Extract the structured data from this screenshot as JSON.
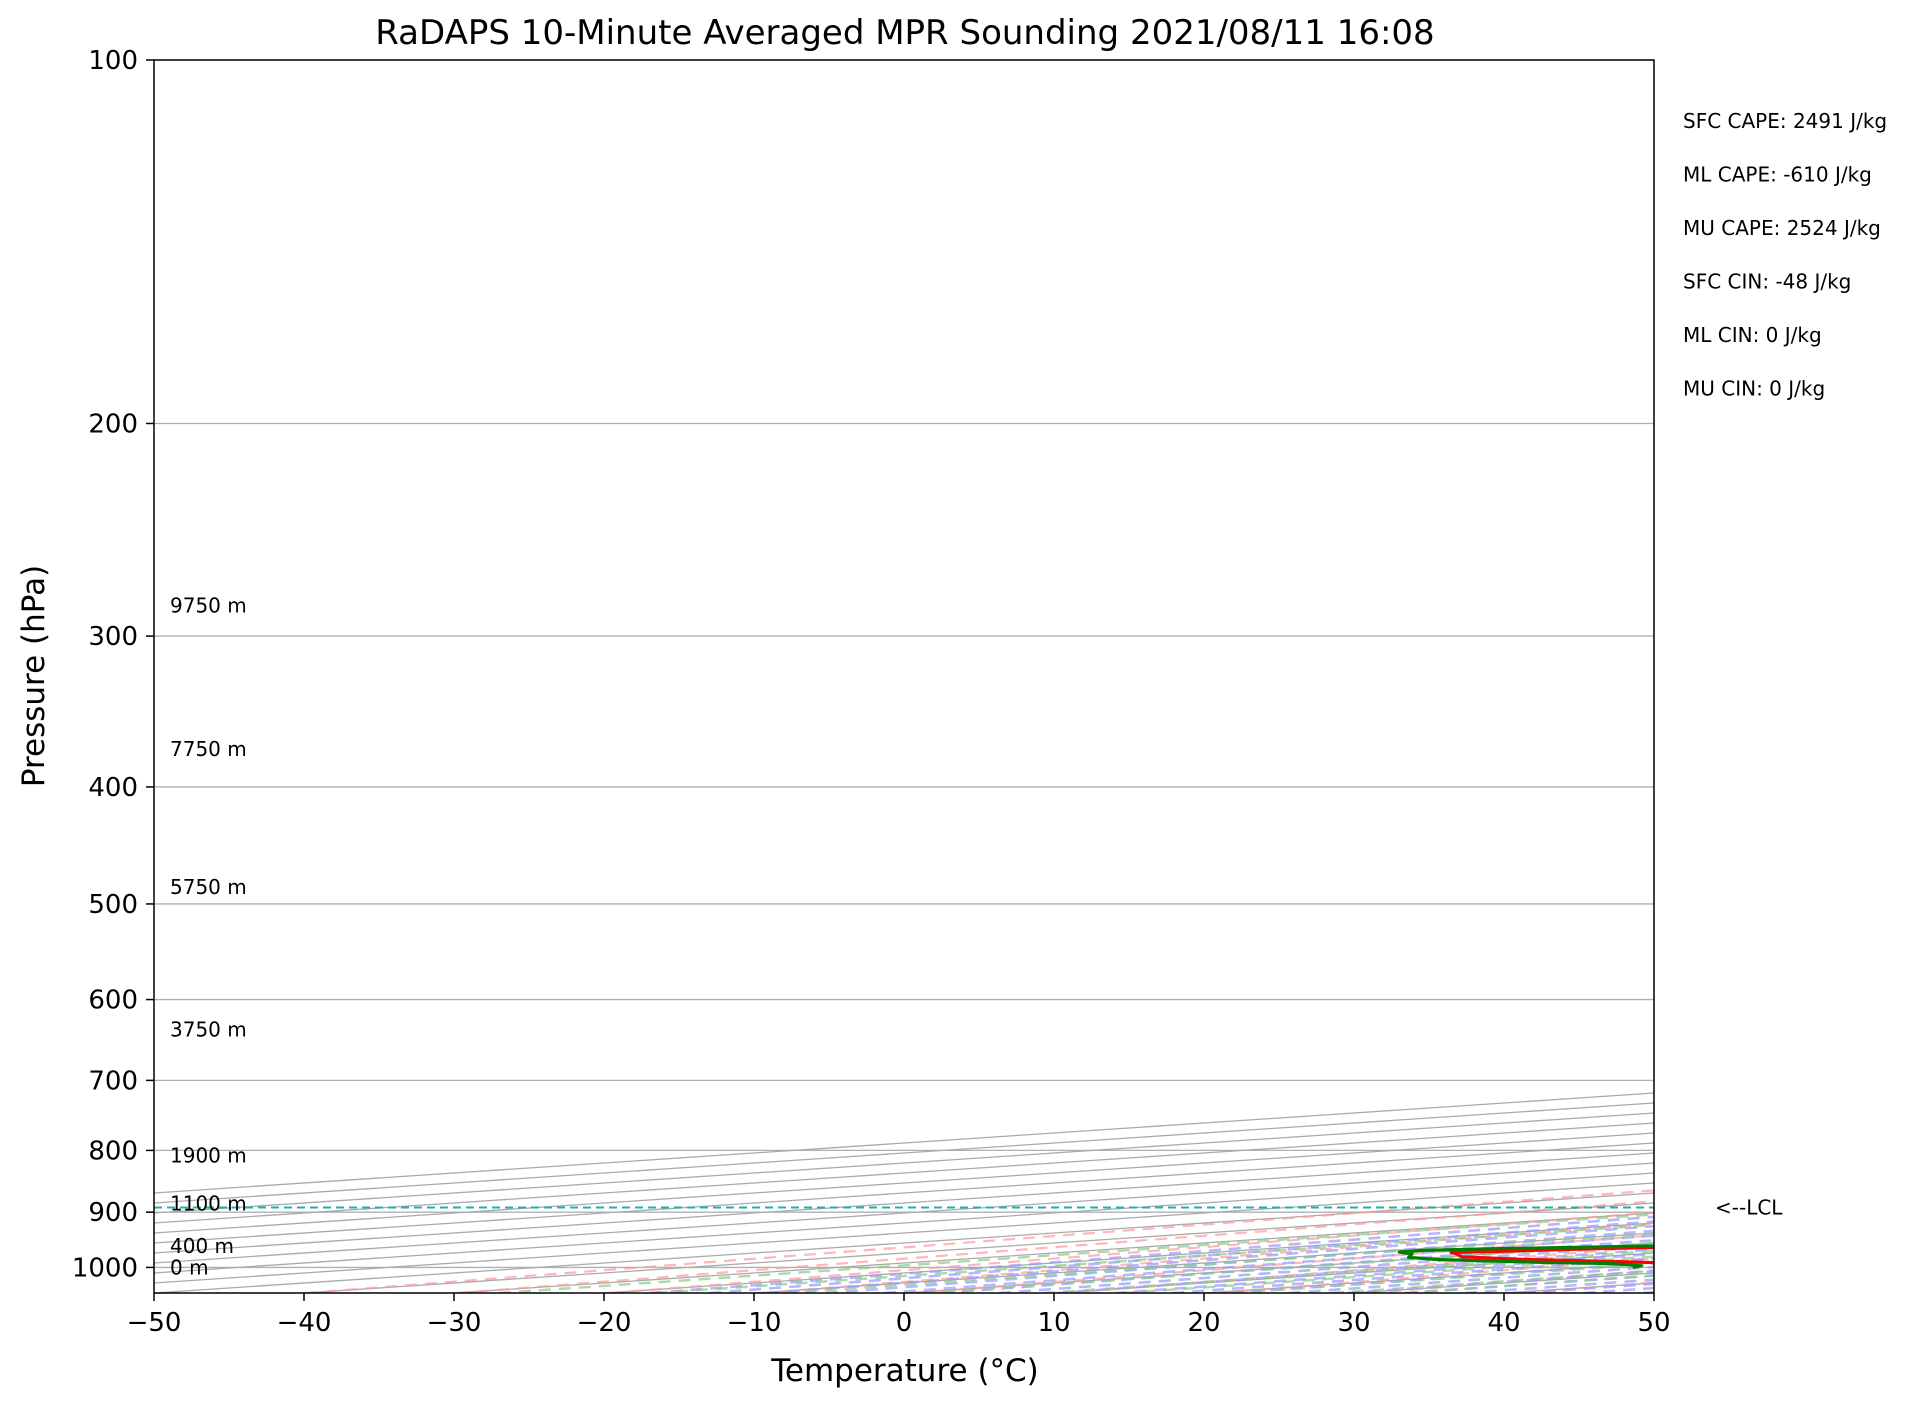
{
  "chart_data": {
    "type": "line",
    "title": "RaDAPS 10-Minute Averaged MPR Sounding 2021/08/11 16:08",
    "xlabel": "Temperature (°C)",
    "ylabel": "Pressure (hPa)",
    "xlim": [
      -50,
      50
    ],
    "ylim": [
      1050,
      100
    ],
    "yscale": "log",
    "skew_ratio": 1.0,
    "xticks": [
      -50,
      -40,
      -30,
      -20,
      -10,
      0,
      10,
      20,
      30,
      40,
      50
    ],
    "xtick_labels": [
      "−50",
      "−40",
      "−30",
      "−20",
      "−10",
      "0",
      "10",
      "20",
      "30",
      "40",
      "50"
    ],
    "yticks": [
      100,
      200,
      300,
      400,
      500,
      600,
      700,
      800,
      900,
      1000
    ],
    "ytick_labels": [
      "100",
      "200",
      "300",
      "400",
      "500",
      "600",
      "700",
      "800",
      "900",
      "1000"
    ],
    "grid": true,
    "series": [
      {
        "color": "#ff0000",
        "points": [
          [
            1000,
            33
          ],
          [
            997,
            32
          ],
          [
            995,
            28
          ],
          [
            994,
            25
          ],
          [
            990,
            18
          ],
          [
            985,
            8
          ],
          [
            980,
            1
          ],
          [
            975,
            -2
          ],
          [
            972,
            -4
          ],
          [
            965,
            2
          ],
          [
            960,
            8
          ],
          [
            952,
            14
          ],
          [
            945,
            20
          ],
          [
            940,
            21
          ],
          [
            935,
            24
          ],
          [
            930,
            26
          ],
          [
            927,
            29
          ],
          [
            923,
            33
          ],
          [
            920,
            33
          ],
          [
            917,
            30
          ],
          [
            912,
            26
          ],
          [
            906,
            36
          ],
          [
            900,
            50
          ],
          [
            896,
            30
          ],
          [
            890,
            38
          ],
          [
            888,
            35
          ],
          [
            885,
            36
          ],
          [
            878,
            40
          ],
          [
            872,
            40
          ],
          [
            865,
            38
          ],
          [
            860,
            37
          ],
          [
            858,
            36
          ],
          [
            855,
            27
          ],
          [
            850,
            24
          ],
          [
            845,
            28
          ],
          [
            838,
            36
          ],
          [
            832,
            24
          ],
          [
            820,
            20
          ],
          [
            800,
            17
          ],
          [
            790,
            15
          ],
          [
            770,
            13
          ],
          [
            750,
            12
          ],
          [
            730,
            12
          ],
          [
            700,
            13
          ],
          [
            680,
            12
          ],
          [
            650,
            10
          ],
          [
            600,
            8
          ],
          [
            560,
            7
          ],
          [
            530,
            4
          ],
          [
            500,
            0
          ],
          [
            460,
            -5
          ],
          [
            440,
            -7
          ],
          [
            420,
            -7
          ],
          [
            400,
            -10
          ],
          [
            380,
            -12
          ],
          [
            360,
            -14
          ],
          [
            340,
            -17
          ],
          [
            320,
            -19
          ],
          [
            303,
            -20
          ],
          [
            296,
            -22
          ],
          [
            285,
            -23
          ]
        ]
      },
      {
        "color": "#008000",
        "points": [
          [
            1000,
            23
          ],
          [
            997,
            22
          ],
          [
            993,
            18
          ],
          [
            990,
            11
          ],
          [
            985,
            2
          ],
          [
            981,
            -2
          ],
          [
            977,
            -4
          ],
          [
            975,
            -5
          ],
          [
            971,
            -8
          ],
          [
            968,
            -8
          ],
          [
            965,
            -5
          ],
          [
            960,
            3
          ],
          [
            952,
            14
          ],
          [
            945,
            20
          ],
          [
            940,
            21
          ],
          [
            935,
            23
          ],
          [
            925,
            15
          ],
          [
            910,
            11
          ],
          [
            900,
            10
          ],
          [
            890,
            10
          ],
          [
            880,
            9
          ],
          [
            870,
            8
          ],
          [
            860,
            7
          ],
          [
            855,
            6
          ],
          [
            840,
            5
          ],
          [
            830,
            5
          ],
          [
            815,
            5
          ],
          [
            790,
            3
          ],
          [
            770,
            1
          ],
          [
            750,
            0
          ],
          [
            730,
            -1
          ],
          [
            710,
            -1
          ],
          [
            700,
            -2
          ],
          [
            680,
            0
          ],
          [
            650,
            -2
          ],
          [
            620,
            -3
          ],
          [
            600,
            -4
          ],
          [
            570,
            -4
          ],
          [
            560,
            -5
          ],
          [
            520,
            -8
          ],
          [
            500,
            -13
          ],
          [
            470,
            -16
          ],
          [
            455,
            -17
          ],
          [
            440,
            -18
          ],
          [
            420,
            -18
          ],
          [
            405,
            -18
          ],
          [
            395,
            -20
          ],
          [
            385,
            -19
          ],
          [
            370,
            -20
          ],
          [
            355,
            -21
          ],
          [
            340,
            -21
          ],
          [
            320,
            -23
          ],
          [
            303,
            -26
          ],
          [
            294,
            -64
          ],
          [
            285,
            -26
          ]
        ]
      },
      {
        "color": "#000000",
        "dashed": true,
        "points": [
          [
            1000,
            33
          ],
          [
            950,
            28.5
          ],
          [
            920,
            26
          ],
          [
            892,
            23.5
          ],
          [
            850,
            21.5
          ],
          [
            800,
            19.5
          ],
          [
            700,
            15.0
          ],
          [
            600,
            9.5
          ],
          [
            500,
            2.5
          ],
          [
            400,
            -6.5
          ],
          [
            350,
            -12.0
          ],
          [
            300,
            -20.0
          ],
          [
            285,
            -23.0
          ]
        ]
      }
    ],
    "lcl": {
      "pressure": 892,
      "label": "<--LCL",
      "color": "#20b2aa"
    },
    "height_labels": [
      {
        "pressure": 283,
        "text": "9750 m"
      },
      {
        "pressure": 372,
        "text": "7750 m"
      },
      {
        "pressure": 484,
        "text": "5750 m"
      },
      {
        "pressure": 635,
        "text": "3750 m"
      },
      {
        "pressure": 808,
        "text": "1900 m"
      },
      {
        "pressure": 885,
        "text": "1100 m"
      },
      {
        "pressure": 960,
        "text": "400 m"
      },
      {
        "pressure": 1000,
        "text": "0 m"
      }
    ],
    "stats": [
      "SFC CAPE: 2491 J/kg",
      "ML CAPE: -610 J/kg",
      "MU CAPE: 2524 J/kg",
      "SFC CIN: -48 J/kg",
      "ML CIN: 0 J/kg",
      "MU CIN: 0 J/kg"
    ],
    "background_lines": {
      "isotherm_color": "#aaaaaa",
      "dry_adiabat_color": "#ff9999",
      "moist_adiabat_color": "#9999ff",
      "mixing_ratio_color": "#88cc88"
    }
  }
}
